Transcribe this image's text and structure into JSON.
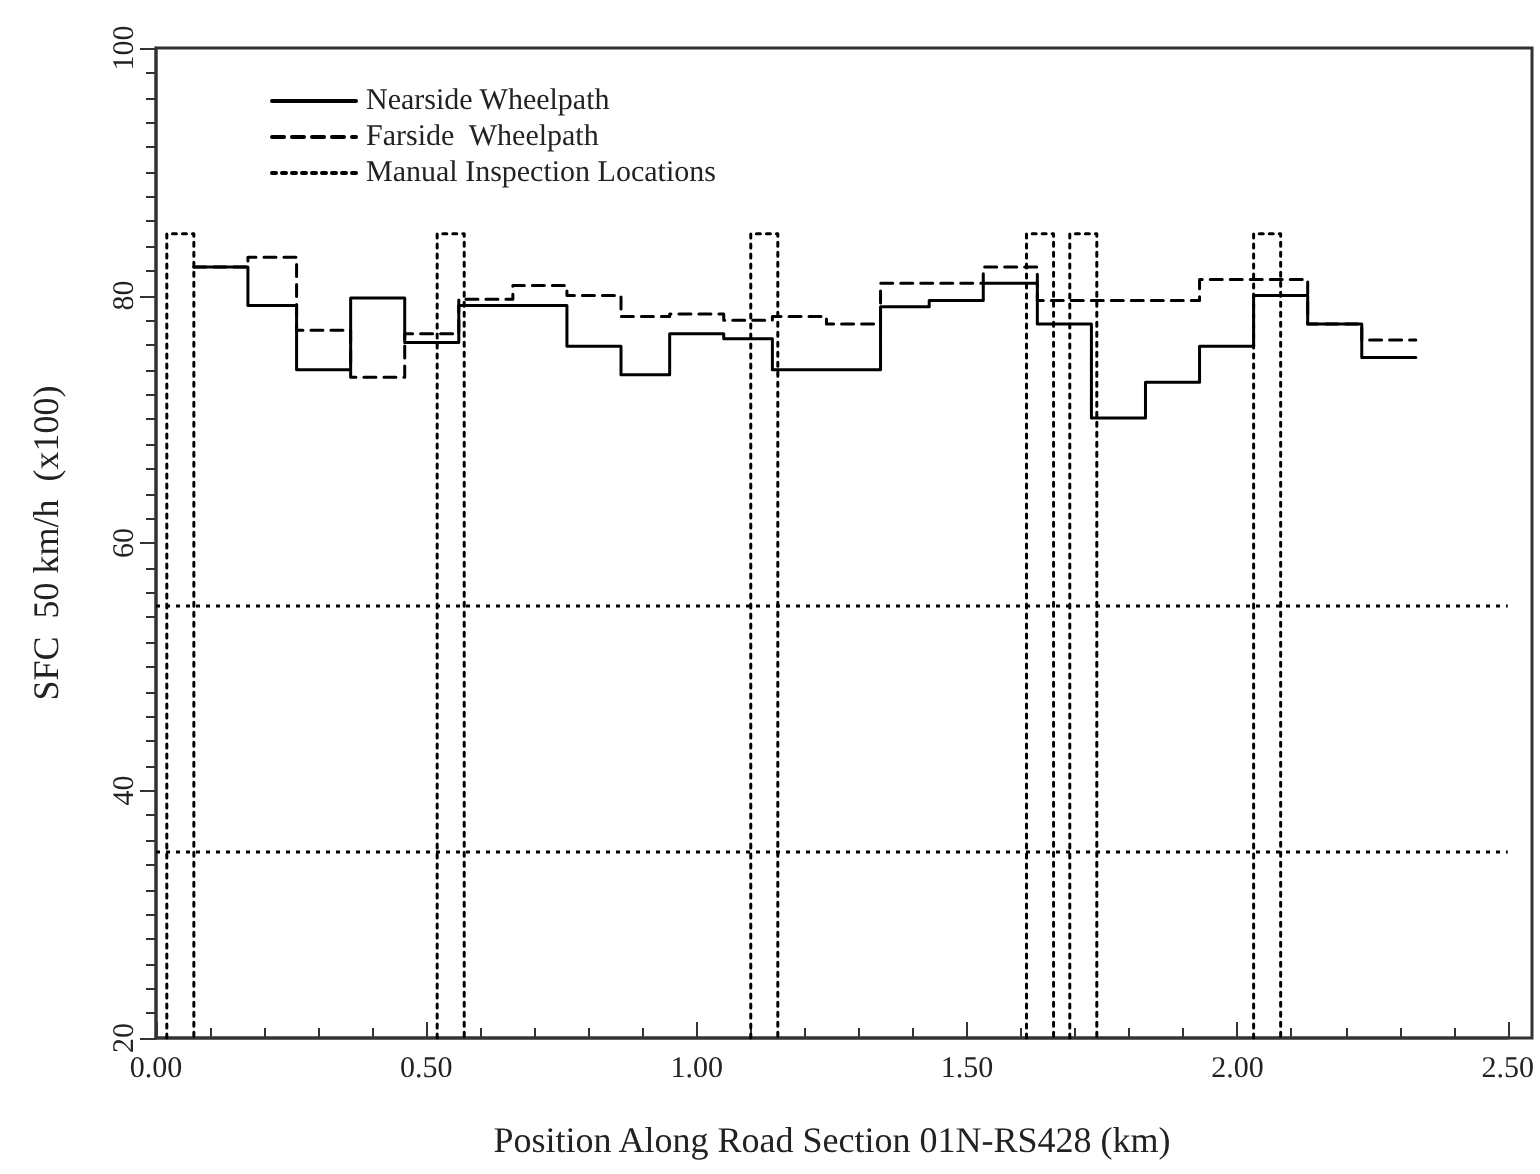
{
  "chart_data": {
    "type": "step",
    "xlabel": "Position Along Road Section 01N-RS428 (km)",
    "ylabel": "SFC  50 km/h  (x100)",
    "xlim": [
      0,
      2.5
    ],
    "xticks": [
      {
        "value": 0,
        "label": "0.00"
      },
      {
        "value": 0.5,
        "label": "0.50"
      },
      {
        "value": 1,
        "label": "1.00"
      },
      {
        "value": 1.5,
        "label": "1.50"
      },
      {
        "value": 2,
        "label": "2.00"
      },
      {
        "value": 2.5,
        "label": "2.50"
      }
    ],
    "ylim": [
      20,
      100
    ],
    "yticks": [
      20,
      40,
      60,
      80,
      100
    ],
    "grid": false,
    "legend": "top left",
    "marker": "none",
    "series": [
      {
        "name": "Nearside Wheelpath",
        "color": "#000000",
        "line_style": "solid",
        "x": [
          0.07,
          0.17,
          0.26,
          0.36,
          0.46,
          0.56,
          0.66,
          0.76,
          0.86,
          0.95,
          1.05,
          1.14,
          1.24,
          1.34,
          1.43,
          1.53,
          1.63,
          1.73,
          1.83,
          1.93,
          2.03,
          2.13,
          2.23,
          2.33
        ],
        "values": [
          82.3,
          79.2,
          74,
          79.8,
          76.2,
          79.2,
          79.2,
          75.9,
          73.6,
          76.9,
          76.5,
          74,
          74,
          79.1,
          79.6,
          81,
          77.7,
          70.1,
          73,
          75.9,
          80,
          77.7,
          75,
          75
        ]
      },
      {
        "name": "Farside  Wheelpath",
        "color": "#000000",
        "line_style": "dashed",
        "x": [
          0.07,
          0.17,
          0.26,
          0.36,
          0.46,
          0.56,
          0.66,
          0.76,
          0.86,
          0.95,
          1.05,
          1.14,
          1.24,
          1.34,
          1.43,
          1.53,
          1.63,
          1.73,
          1.83,
          1.93,
          2.03,
          2.13,
          2.23,
          2.33
        ],
        "values": [
          82.3,
          83.1,
          77.2,
          73.4,
          76.9,
          79.7,
          80.8,
          80,
          78.3,
          78.5,
          78,
          78.3,
          77.7,
          81,
          81,
          82.3,
          79.6,
          79.6,
          79.6,
          81.3,
          81.3,
          77.7,
          76.4,
          76.4
        ]
      },
      {
        "name": "Manual Inspection Locations",
        "type": "line",
        "color": "#000000",
        "line_style": "dotted",
        "x": [
          0.02,
          0.02,
          0.07,
          0.07,
          null,
          0.52,
          0.52,
          0.57,
          0.57,
          null,
          1.1,
          1.1,
          1.15,
          1.15,
          null,
          1.61,
          1.61,
          1.66,
          1.66,
          null,
          1.69,
          1.69,
          1.74,
          1.74,
          null,
          2.03,
          2.03,
          2.08,
          2.08
        ],
        "values": [
          20,
          85,
          85,
          20,
          null,
          20,
          85,
          85,
          20,
          null,
          20,
          85,
          85,
          20,
          null,
          20,
          85,
          85,
          20,
          null,
          20,
          85,
          85,
          20,
          null,
          20,
          85,
          85,
          20
        ]
      }
    ],
    "ref_lines": [
      {
        "axis": "y",
        "value": 55,
        "color": "#000000",
        "line_style": "dotted"
      },
      {
        "axis": "y",
        "value": 35,
        "color": "#000000",
        "line_style": "dotted"
      }
    ]
  }
}
